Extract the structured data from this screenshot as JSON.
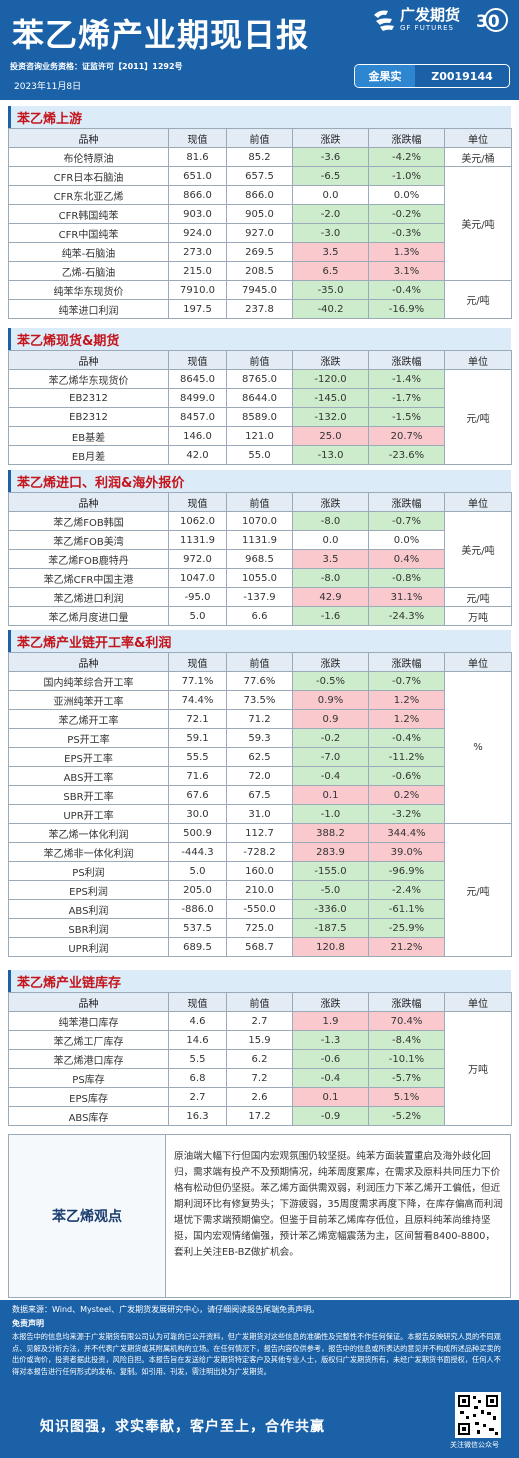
{
  "header": {
    "title": "苯乙烯产业期现日报",
    "logo_cn": "广发期货",
    "logo_en": "GF FUTURES",
    "anniversary": "30",
    "cert": "投资咨询业务资格：证监许可【2011】1292号",
    "date": "2023年11月8日",
    "analyst_name": "金果实",
    "analyst_id": "Z0019144"
  },
  "columns": [
    "品种",
    "现值",
    "前值",
    "涨跌",
    "涨跌幅",
    "单位"
  ],
  "sections": [
    {
      "title": "苯乙烯上游",
      "rows": [
        {
          "name": "布伦特原油",
          "cur": "81.6",
          "prev": "85.2",
          "chg": "-3.6",
          "pct": "-4.2%",
          "dir": "down"
        },
        {
          "name": "CFR日本石脑油",
          "cur": "651.0",
          "prev": "657.5",
          "chg": "-6.5",
          "pct": "-1.0%",
          "dir": "down"
        },
        {
          "name": "CFR东北亚乙烯",
          "cur": "866.0",
          "prev": "866.0",
          "chg": "0.0",
          "pct": "0.0%",
          "dir": "flat"
        },
        {
          "name": "CFR韩国纯苯",
          "cur": "903.0",
          "prev": "905.0",
          "chg": "-2.0",
          "pct": "-0.2%",
          "dir": "down"
        },
        {
          "name": "CFR中国纯苯",
          "cur": "924.0",
          "prev": "927.0",
          "chg": "-3.0",
          "pct": "-0.3%",
          "dir": "down"
        },
        {
          "name": "纯苯-石脑油",
          "cur": "273.0",
          "prev": "269.5",
          "chg": "3.5",
          "pct": "1.3%",
          "dir": "up"
        },
        {
          "name": "乙烯-石脑油",
          "cur": "215.0",
          "prev": "208.5",
          "chg": "6.5",
          "pct": "3.1%",
          "dir": "up"
        },
        {
          "name": "纯苯华东现货价",
          "cur": "7910.0",
          "prev": "7945.0",
          "chg": "-35.0",
          "pct": "-0.4%",
          "dir": "down"
        },
        {
          "name": "纯苯进口利润",
          "cur": "197.5",
          "prev": "237.8",
          "chg": "-40.2",
          "pct": "-16.9%",
          "dir": "down"
        }
      ],
      "units": [
        {
          "label": "美元/桶",
          "span": 1
        },
        {
          "label": "美元/吨",
          "span": 6
        },
        {
          "label": "元/吨",
          "span": 2
        }
      ]
    },
    {
      "title": "苯乙烯现货&期货",
      "rows": [
        {
          "name": "苯乙烯华东现货价",
          "cur": "8645.0",
          "prev": "8765.0",
          "chg": "-120.0",
          "pct": "-1.4%",
          "dir": "down"
        },
        {
          "name": "EB2312",
          "cur": "8499.0",
          "prev": "8644.0",
          "chg": "-145.0",
          "pct": "-1.7%",
          "dir": "down"
        },
        {
          "name": "EB2312",
          "cur": "8457.0",
          "prev": "8589.0",
          "chg": "-132.0",
          "pct": "-1.5%",
          "dir": "down"
        },
        {
          "name": "EB基差",
          "cur": "146.0",
          "prev": "121.0",
          "chg": "25.0",
          "pct": "20.7%",
          "dir": "up"
        },
        {
          "name": "EB月差",
          "cur": "42.0",
          "prev": "55.0",
          "chg": "-13.0",
          "pct": "-23.6%",
          "dir": "down"
        }
      ],
      "units": [
        {
          "label": "元/吨",
          "span": 5
        }
      ]
    },
    {
      "title": "苯乙烯进口、利润&海外报价",
      "rows": [
        {
          "name": "苯乙烯FOB韩国",
          "cur": "1062.0",
          "prev": "1070.0",
          "chg": "-8.0",
          "pct": "-0.7%",
          "dir": "down"
        },
        {
          "name": "苯乙烯FOB美湾",
          "cur": "1131.9",
          "prev": "1131.9",
          "chg": "0.0",
          "pct": "0.0%",
          "dir": "flat"
        },
        {
          "name": "苯乙烯FOB鹿特丹",
          "cur": "972.0",
          "prev": "968.5",
          "chg": "3.5",
          "pct": "0.4%",
          "dir": "up"
        },
        {
          "name": "苯乙烯CFR中国主港",
          "cur": "1047.0",
          "prev": "1055.0",
          "chg": "-8.0",
          "pct": "-0.8%",
          "dir": "down"
        },
        {
          "name": "苯乙烯进口利润",
          "cur": "-95.0",
          "prev": "-137.9",
          "chg": "42.9",
          "pct": "31.1%",
          "dir": "up"
        },
        {
          "name": "苯乙烯月度进口量",
          "cur": "5.0",
          "prev": "6.6",
          "chg": "-1.6",
          "pct": "-24.3%",
          "dir": "down"
        }
      ],
      "units": [
        {
          "label": "美元/吨",
          "span": 4
        },
        {
          "label": "元/吨",
          "span": 1
        },
        {
          "label": "万吨",
          "span": 1
        }
      ]
    },
    {
      "title": "苯乙烯产业链开工率&利润",
      "rows": [
        {
          "name": "国内纯苯综合开工率",
          "cur": "77.1%",
          "prev": "77.6%",
          "chg": "-0.5%",
          "pct": "-0.7%",
          "dir": "down"
        },
        {
          "name": "亚洲纯苯开工率",
          "cur": "74.4%",
          "prev": "73.5%",
          "chg": "0.9%",
          "pct": "1.2%",
          "dir": "up"
        },
        {
          "name": "苯乙烯开工率",
          "cur": "72.1",
          "prev": "71.2",
          "chg": "0.9",
          "pct": "1.2%",
          "dir": "up"
        },
        {
          "name": "PS开工率",
          "cur": "59.1",
          "prev": "59.3",
          "chg": "-0.2",
          "pct": "-0.4%",
          "dir": "down"
        },
        {
          "name": "EPS开工率",
          "cur": "55.5",
          "prev": "62.5",
          "chg": "-7.0",
          "pct": "-11.2%",
          "dir": "down"
        },
        {
          "name": "ABS开工率",
          "cur": "71.6",
          "prev": "72.0",
          "chg": "-0.4",
          "pct": "-0.6%",
          "dir": "down"
        },
        {
          "name": "SBR开工率",
          "cur": "67.6",
          "prev": "67.5",
          "chg": "0.1",
          "pct": "0.2%",
          "dir": "up"
        },
        {
          "name": "UPR开工率",
          "cur": "30.0",
          "prev": "31.0",
          "chg": "-1.0",
          "pct": "-3.2%",
          "dir": "down"
        },
        {
          "name": "苯乙烯一体化利润",
          "cur": "500.9",
          "prev": "112.7",
          "chg": "388.2",
          "pct": "344.4%",
          "dir": "up"
        },
        {
          "name": "苯乙烯非一体化利润",
          "cur": "-444.3",
          "prev": "-728.2",
          "chg": "283.9",
          "pct": "39.0%",
          "dir": "up"
        },
        {
          "name": "PS利润",
          "cur": "5.0",
          "prev": "160.0",
          "chg": "-155.0",
          "pct": "-96.9%",
          "dir": "down"
        },
        {
          "name": "EPS利润",
          "cur": "205.0",
          "prev": "210.0",
          "chg": "-5.0",
          "pct": "-2.4%",
          "dir": "down"
        },
        {
          "name": "ABS利润",
          "cur": "-886.0",
          "prev": "-550.0",
          "chg": "-336.0",
          "pct": "-61.1%",
          "dir": "down"
        },
        {
          "name": "SBR利润",
          "cur": "537.5",
          "prev": "725.0",
          "chg": "-187.5",
          "pct": "-25.9%",
          "dir": "down"
        },
        {
          "name": "UPR利润",
          "cur": "689.5",
          "prev": "568.7",
          "chg": "120.8",
          "pct": "21.2%",
          "dir": "up"
        }
      ],
      "units": [
        {
          "label": "%",
          "span": 8
        },
        {
          "label": "元/吨",
          "span": 7
        }
      ]
    },
    {
      "title": "苯乙烯产业链库存",
      "rows": [
        {
          "name": "纯苯港口库存",
          "cur": "4.6",
          "prev": "2.7",
          "chg": "1.9",
          "pct": "70.4%",
          "dir": "up"
        },
        {
          "name": "苯乙烯工厂库存",
          "cur": "14.6",
          "prev": "15.9",
          "chg": "-1.3",
          "pct": "-8.4%",
          "dir": "down"
        },
        {
          "name": "苯乙烯港口库存",
          "cur": "5.5",
          "prev": "6.2",
          "chg": "-0.6",
          "pct": "-10.1%",
          "dir": "down"
        },
        {
          "name": "PS库存",
          "cur": "6.8",
          "prev": "7.2",
          "chg": "-0.4",
          "pct": "-5.7%",
          "dir": "down"
        },
        {
          "name": "EPS库存",
          "cur": "2.7",
          "prev": "2.6",
          "chg": "0.1",
          "pct": "5.1%",
          "dir": "up"
        },
        {
          "name": "ABS库存",
          "cur": "16.3",
          "prev": "17.2",
          "chg": "-0.9",
          "pct": "-5.2%",
          "dir": "down"
        }
      ],
      "units": [
        {
          "label": "万吨",
          "span": 6
        }
      ]
    }
  ],
  "viewpoint": {
    "label": "苯乙烯观点",
    "text": "原油端大幅下行但国内宏观氛围仍较坚挺。纯苯方面装置重启及海外歧化回归，需求端有投产不及预期情况，纯苯周度累库，在需求及原料共同压力下价格有松动但仍坚挺。苯乙烯方面供需双弱，利润压力下苯乙烯开工偏低，但近期利润环比有修复势头；下游疲弱，35周度需求再度下降，在库存偏高而利润堪忧下需求端预期偏空。但鉴于目前苯乙烯库存低位，且原料纯苯尚维持坚挺，国内宏观情绪偏强，预计苯乙烯宽幅震荡为主，区间暂看8400-8800，套利上关注EB-BZ做扩机会。"
  },
  "footer": {
    "source": "数据来源：Wind、Mysteel、广发期货发展研究中心，请仔细阅读报告尾端免责声明。",
    "disclaimer_title": "免责声明",
    "disclaimer": "本报告中的信息均来源于广发期货有限公司认为可靠的已公开资料，但广发期货对这些信息的准确性及完整性不作任何保证。本报告反映研究人员的不同观点、见解及分析方法，并不代表广发期货或其附属机构的立场。在任何情况下，报告内容仅供参考，报告中的信息或所表达的意见并不构成所述品种买卖的出价或询价，投资者据此投资，风险自担。本报告旨在发送给广发期货特定客户及其他专业人士，版权归广发期货所有，未经广发期货书面授权，任何人不得对本报告进行任何形式的发布、复制。如引用、刊发，需注明出处为广发期货。",
    "slogan": "知识图强，求实奉献，客户至上，合作共赢",
    "qr_caption": "关注微信公众号"
  }
}
